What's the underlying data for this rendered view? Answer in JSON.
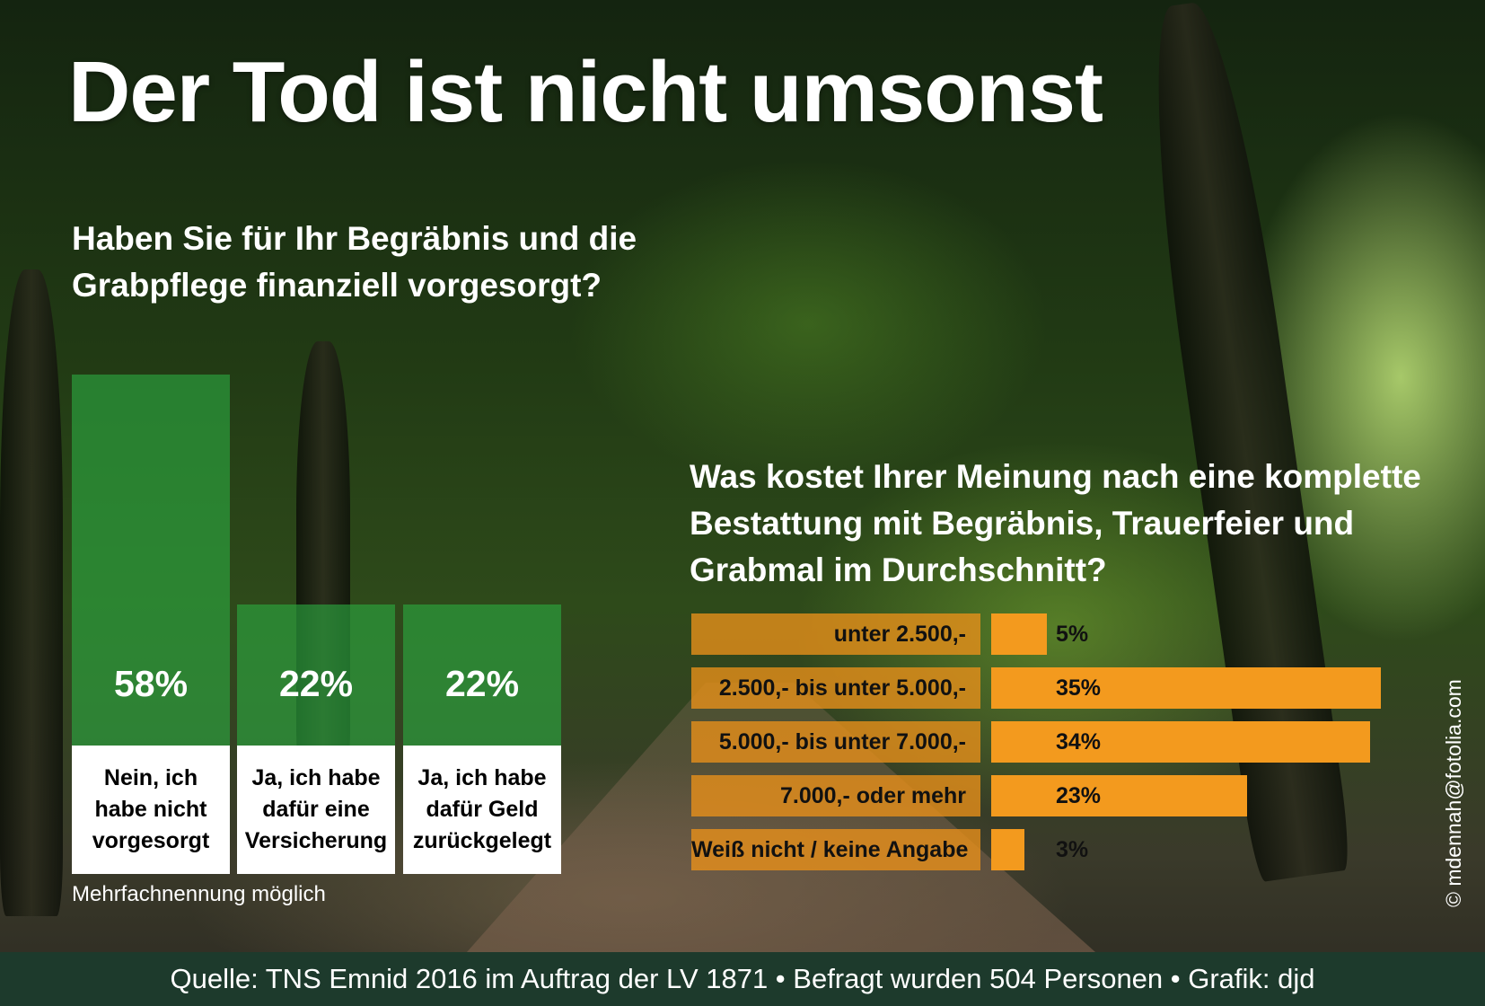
{
  "title": "Der Tod ist nicht umsonst",
  "chart_data": [
    {
      "type": "bar",
      "title": "Haben Sie für Ihr Begräbnis und die Grabpflege finanziell vorgesorgt?",
      "categories": [
        "Nein, ich habe nicht vorgesorgt",
        "Ja, ich habe dafür eine Versicherung",
        "Ja, ich habe dafür Geld zurückgelegt"
      ],
      "category_lines": [
        "Nein, ich\nhabe nicht\nvorgesorgt",
        "Ja, ich habe\ndafür eine\nVersicherung",
        "Ja, ich habe\ndafür Geld\nzurückgelegt"
      ],
      "values": [
        58,
        22,
        22
      ],
      "value_labels": [
        "58%",
        "22%",
        "22%"
      ],
      "unit": "%",
      "note": "Mehrfachnennung möglich",
      "bar_color": "#2caa40"
    },
    {
      "type": "bar",
      "orientation": "horizontal",
      "title": "Was kostet Ihrer Meinung nach eine komplette Bestattung mit Begräbnis, Trauerfeier und Grabmal im Durchschnitt?",
      "categories": [
        "unter 2.500,-",
        "2.500,- bis unter 5.000,-",
        "5.000,- bis unter 7.000,-",
        "7.000,- oder mehr",
        "Weiß nicht / keine Angabe"
      ],
      "values": [
        5,
        35,
        34,
        23,
        3
      ],
      "value_labels": [
        "5%",
        "35%",
        "34%",
        "23%",
        "3%"
      ],
      "unit": "%",
      "bar_color": "#f39a1e"
    }
  ],
  "credit": "© mdennah@fotolia.com",
  "footer": "Quelle: TNS Emnid 2016 im Auftrag der LV 1871 • Befragt wurden 504 Personen • Grafik: djd"
}
